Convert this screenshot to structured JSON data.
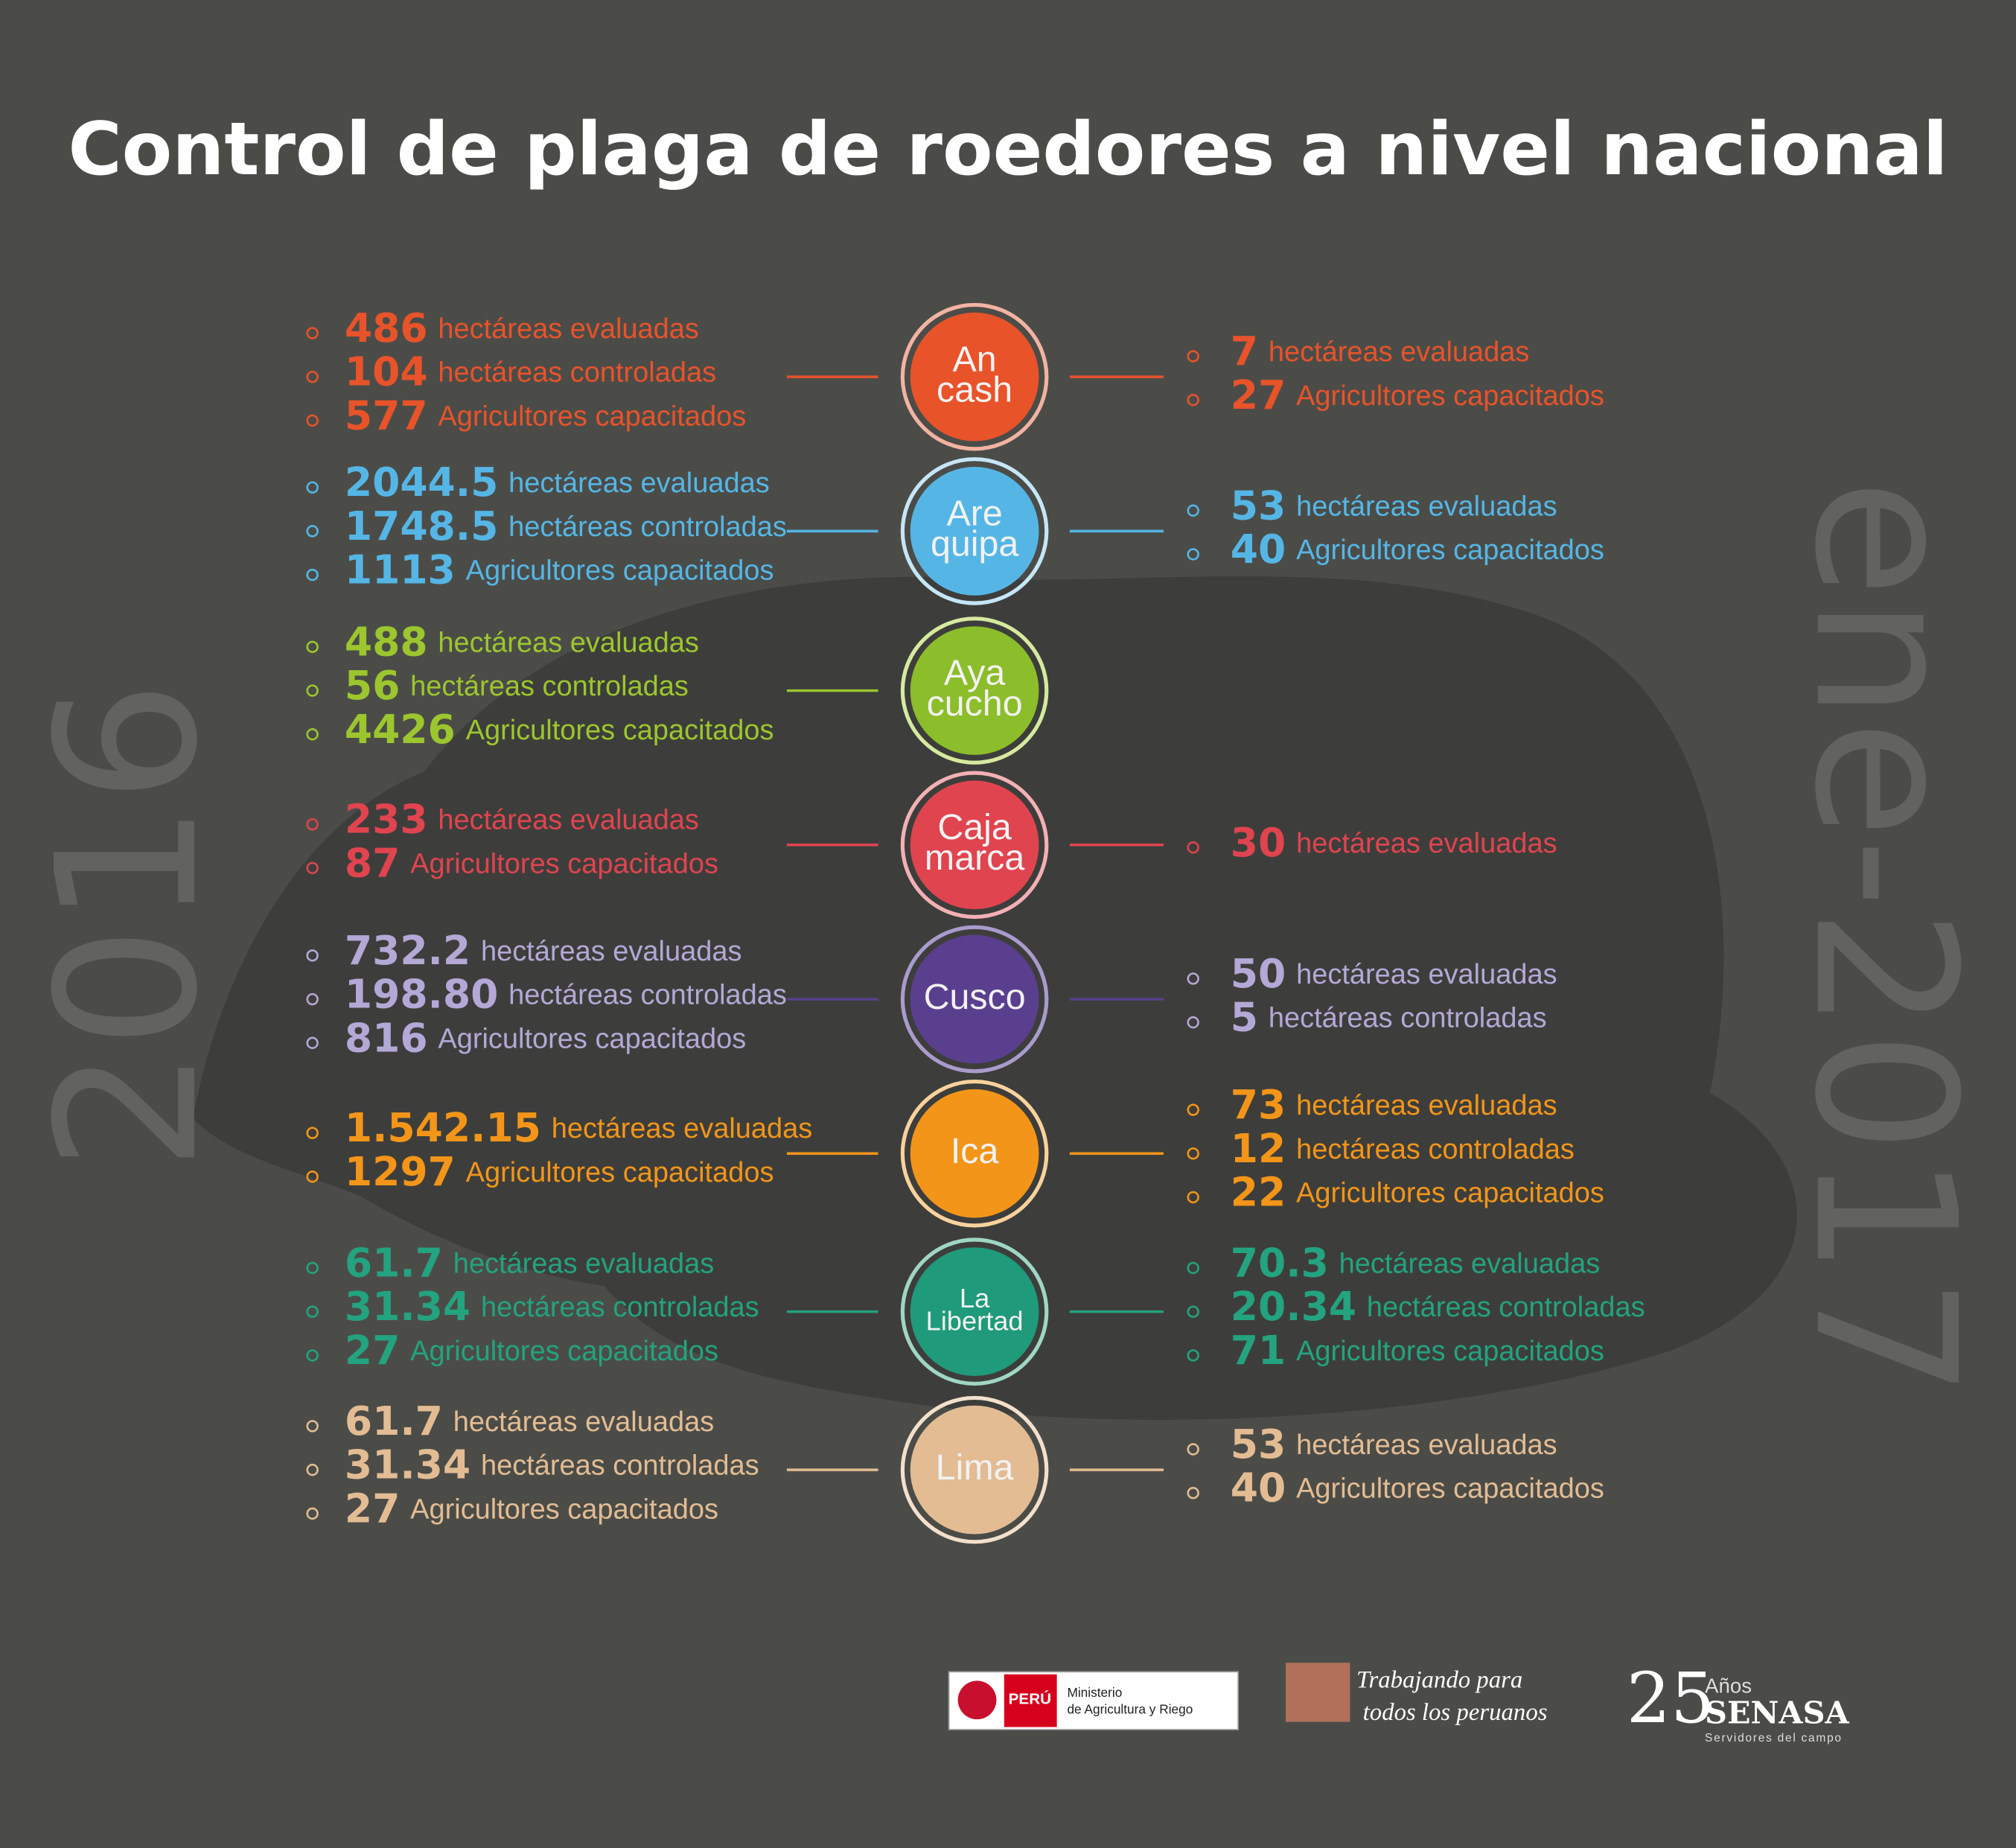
{
  "title": "Control de plaga de roedores a nivel nacional",
  "left_period": "2016",
  "right_period": "ene-2017",
  "regions": [
    {
      "name_lines": [
        "An",
        "cash"
      ],
      "color": "#e8532a",
      "ring": "#f2b3a3",
      "text_color": "#e8532a",
      "left": [
        {
          "value": "486",
          "label": "hectáreas evaluadas"
        },
        {
          "value": "104",
          "label": "hectáreas controladas"
        },
        {
          "value": "577",
          "label": "Agricultores capacitados"
        }
      ],
      "right": [
        {
          "value": "7",
          "label": "hectáreas evaluadas"
        },
        {
          "value": "27",
          "label": "Agricultores capacitados"
        }
      ]
    },
    {
      "name_lines": [
        "Are",
        "quipa"
      ],
      "color": "#55b6e6",
      "ring": "#c5e6f7",
      "text_color": "#55b6e6",
      "left": [
        {
          "value": "2044.5",
          "label": "hectáreas evaluadas"
        },
        {
          "value": "1748.5",
          "label": "hectáreas controladas"
        },
        {
          "value": "1113",
          "label": "Agricultores capacitados"
        }
      ],
      "right": [
        {
          "value": "53",
          "label": "hectáreas evaluadas"
        },
        {
          "value": "40",
          "label": "Agricultores capacitados"
        }
      ]
    },
    {
      "name_lines": [
        "Aya",
        "cucho"
      ],
      "color": "#8cbd2a",
      "ring": "#d6ea9f",
      "text_color": "#9cc62e",
      "left": [
        {
          "value": "488",
          "label": "hectáreas evaluadas"
        },
        {
          "value": "56",
          "label": "hectáreas controladas"
        },
        {
          "value": "4426",
          "label": "Agricultores capacitados"
        }
      ],
      "right": []
    },
    {
      "name_lines": [
        "Caja",
        "marca"
      ],
      "color": "#e0444f",
      "ring": "#f3b0b5",
      "text_color": "#e0444f",
      "left": [
        {
          "value": "233",
          "label": "hectáreas evaluadas"
        },
        {
          "value": "87",
          "label": "Agricultores capacitados"
        }
      ],
      "right": [
        {
          "value": "30",
          "label": "hectáreas evaluadas"
        }
      ]
    },
    {
      "name_lines": [
        "Cusco"
      ],
      "color": "#5a3f8f",
      "ring": "#a99bcc",
      "text_color": "#b3a8d6",
      "left": [
        {
          "value": "732.2",
          "label": "hectáreas evaluadas"
        },
        {
          "value": "198.80",
          "label": "hectáreas controladas"
        },
        {
          "value": "816",
          "label": "Agricultores capacitados"
        }
      ],
      "right": [
        {
          "value": "50",
          "label": "hectáreas evaluadas"
        },
        {
          "value": "5",
          "label": "hectáreas controladas"
        }
      ]
    },
    {
      "name_lines": [
        "Ica"
      ],
      "color": "#f39519",
      "ring": "#f9d29c",
      "text_color": "#f39519",
      "left": [
        {
          "value": "1.542.15",
          "label": "hectáreas evaluadas"
        },
        {
          "value": "1297",
          "label": "Agricultores capacitados"
        }
      ],
      "right": [
        {
          "value": "73",
          "label": "hectáreas evaluadas"
        },
        {
          "value": "12",
          "label": "hectáreas controladas"
        },
        {
          "value": "22",
          "label": "Agricultores capacitados"
        }
      ]
    },
    {
      "name_lines": [
        "La",
        "Libertad"
      ],
      "color": "#1f9a7a",
      "ring": "#9fd6c4",
      "text_color": "#23a37f",
      "left": [
        {
          "value": "61.7",
          "label": "hectáreas evaluadas"
        },
        {
          "value": "31.34",
          "label": "hectáreas controladas"
        },
        {
          "value": "27",
          "label": "Agricultores capacitados"
        }
      ],
      "right": [
        {
          "value": "70.3",
          "label": "hectáreas evaluadas"
        },
        {
          "value": "20.34",
          "label": "hectáreas controladas"
        },
        {
          "value": "71",
          "label": "Agricultores capacitados"
        }
      ]
    },
    {
      "name_lines": [
        "Lima"
      ],
      "color": "#e3bc93",
      "ring": "#f3e0cc",
      "text_color": "#e3bc93",
      "left": [
        {
          "value": "61.7",
          "label": "hectáreas evaluadas"
        },
        {
          "value": "31.34",
          "label": "hectáreas controladas"
        },
        {
          "value": "27",
          "label": "Agricultores capacitados"
        }
      ],
      "right": [
        {
          "value": "53",
          "label": "hectáreas evaluadas"
        },
        {
          "value": "40",
          "label": "Agricultores capacitados"
        }
      ]
    }
  ],
  "footer": {
    "peru": "PERÚ",
    "ministry_line1": "Ministerio",
    "ministry_line2": "de Agricultura y Riego",
    "slogan_line1": "Trabajando para",
    "slogan_line2": "todos los peruanos",
    "anniversary": "25",
    "years": "Años",
    "brand": "SENASA",
    "brand_tagline": "Servidores del campo"
  }
}
